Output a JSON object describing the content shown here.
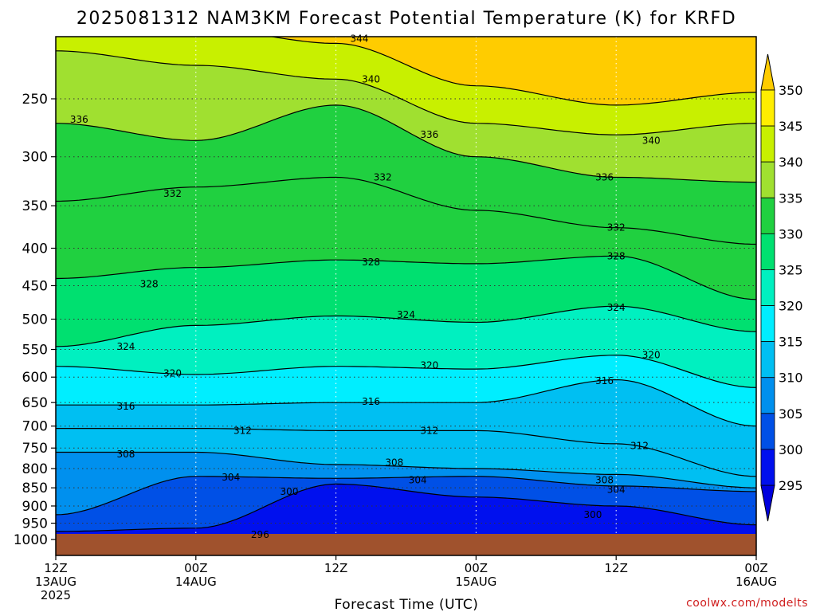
{
  "chart_data": {
    "type": "heatmap",
    "title": "2025081312 NAM3KM Forecast Potential Temperature (K) for KRFD",
    "xlabel": "Forecast Time (UTC)",
    "ylabel": "",
    "x_ticks": [
      {
        "hours": 0,
        "line1": "12Z",
        "line2": "13AUG",
        "line3": "2025"
      },
      {
        "hours": 12,
        "line1": "00Z",
        "line2": "14AUG",
        "line3": ""
      },
      {
        "hours": 24,
        "line1": "12Z",
        "line2": "",
        "line3": ""
      },
      {
        "hours": 36,
        "line1": "00Z",
        "line2": "15AUG",
        "line3": ""
      },
      {
        "hours": 48,
        "line1": "12Z",
        "line2": "",
        "line3": ""
      },
      {
        "hours": 60,
        "line1": "00Z",
        "line2": "16AUG",
        "line3": ""
      }
    ],
    "xlim_hours": [
      0,
      60
    ],
    "y_axis": {
      "scale": "log-pressure",
      "inverted": true,
      "range_hpa": [
        1000,
        200
      ],
      "ticks": [
        250,
        300,
        350,
        400,
        450,
        500,
        550,
        600,
        650,
        700,
        750,
        800,
        850,
        900,
        950,
        1000
      ]
    },
    "grid": true,
    "colorbar": {
      "placement": "right",
      "levels": [
        295,
        300,
        305,
        310,
        315,
        320,
        325,
        330,
        335,
        340,
        345,
        350
      ],
      "colors": [
        "#0000dd",
        "#0010ee",
        "#0050e6",
        "#0090ee",
        "#00bff2",
        "#00eeff",
        "#00f0c0",
        "#00e070",
        "#20d040",
        "#a0e030",
        "#c8f000",
        "#ffee00",
        "#ffcc00"
      ]
    },
    "series": [
      {
        "theta": 296,
        "pressure_hpa": [
          985,
          985,
          985,
          985,
          985,
          985
        ]
      },
      {
        "theta": 300,
        "pressure_hpa": [
          975,
          965,
          840,
          875,
          900,
          955
        ]
      },
      {
        "theta": 304,
        "pressure_hpa": [
          925,
          820,
          825,
          820,
          845,
          860
        ]
      },
      {
        "theta": 308,
        "pressure_hpa": [
          760,
          760,
          790,
          800,
          815,
          850
        ]
      },
      {
        "theta": 312,
        "pressure_hpa": [
          705,
          705,
          710,
          710,
          740,
          820
        ]
      },
      {
        "theta": 316,
        "pressure_hpa": [
          655,
          655,
          650,
          650,
          605,
          700
        ]
      },
      {
        "theta": 320,
        "pressure_hpa": [
          580,
          595,
          580,
          585,
          560,
          620
        ]
      },
      {
        "theta": 324,
        "pressure_hpa": [
          545,
          510,
          495,
          505,
          480,
          520
        ]
      },
      {
        "theta": 328,
        "pressure_hpa": [
          440,
          425,
          415,
          420,
          410,
          470
        ]
      },
      {
        "theta": 332,
        "pressure_hpa": [
          345,
          330,
          320,
          355,
          375,
          395
        ]
      },
      {
        "theta": 336,
        "pressure_hpa": [
          270,
          285,
          255,
          300,
          320,
          325
        ]
      },
      {
        "theta": 340,
        "pressure_hpa": [
          215,
          225,
          235,
          270,
          280,
          270
        ]
      },
      {
        "theta": 344,
        "pressure_hpa": [
          195,
          200,
          210,
          240,
          255,
          245
        ]
      }
    ],
    "contour_labels": [
      {
        "text": "296",
        "hours": 17.5,
        "pressure_hpa": 985
      },
      {
        "text": "300",
        "hours": 20.0,
        "pressure_hpa": 860
      },
      {
        "text": "300",
        "hours": 46.0,
        "pressure_hpa": 925
      },
      {
        "text": "304",
        "hours": 15.0,
        "pressure_hpa": 822
      },
      {
        "text": "304",
        "hours": 31.0,
        "pressure_hpa": 830
      },
      {
        "text": "304",
        "hours": 48.0,
        "pressure_hpa": 855
      },
      {
        "text": "308",
        "hours": 6.0,
        "pressure_hpa": 765
      },
      {
        "text": "308",
        "hours": 29.0,
        "pressure_hpa": 785
      },
      {
        "text": "308",
        "hours": 47.0,
        "pressure_hpa": 830
      },
      {
        "text": "312",
        "hours": 16.0,
        "pressure_hpa": 710
      },
      {
        "text": "312",
        "hours": 32.0,
        "pressure_hpa": 710
      },
      {
        "text": "312",
        "hours": 50.0,
        "pressure_hpa": 745
      },
      {
        "text": "316",
        "hours": 6.0,
        "pressure_hpa": 658
      },
      {
        "text": "316",
        "hours": 27.0,
        "pressure_hpa": 648
      },
      {
        "text": "316",
        "hours": 47.0,
        "pressure_hpa": 607
      },
      {
        "text": "320",
        "hours": 10.0,
        "pressure_hpa": 593
      },
      {
        "text": "320",
        "hours": 32.0,
        "pressure_hpa": 578
      },
      {
        "text": "320",
        "hours": 51.0,
        "pressure_hpa": 560
      },
      {
        "text": "324",
        "hours": 6.0,
        "pressure_hpa": 545
      },
      {
        "text": "324",
        "hours": 30.0,
        "pressure_hpa": 493
      },
      {
        "text": "324",
        "hours": 48.0,
        "pressure_hpa": 482
      },
      {
        "text": "328",
        "hours": 8.0,
        "pressure_hpa": 448
      },
      {
        "text": "328",
        "hours": 27.0,
        "pressure_hpa": 418
      },
      {
        "text": "328",
        "hours": 48.0,
        "pressure_hpa": 410
      },
      {
        "text": "332",
        "hours": 10.0,
        "pressure_hpa": 337
      },
      {
        "text": "332",
        "hours": 28.0,
        "pressure_hpa": 320
      },
      {
        "text": "332",
        "hours": 48.0,
        "pressure_hpa": 375
      },
      {
        "text": "336",
        "hours": 2.0,
        "pressure_hpa": 267
      },
      {
        "text": "336",
        "hours": 32.0,
        "pressure_hpa": 280
      },
      {
        "text": "336",
        "hours": 47.0,
        "pressure_hpa": 320
      },
      {
        "text": "340",
        "hours": 27.0,
        "pressure_hpa": 235
      },
      {
        "text": "340",
        "hours": 51.0,
        "pressure_hpa": 285
      },
      {
        "text": "344",
        "hours": 26.0,
        "pressure_hpa": 207
      }
    ],
    "surface_fill_color": "#a0522d"
  },
  "credit": "coolwx.com/modelts"
}
